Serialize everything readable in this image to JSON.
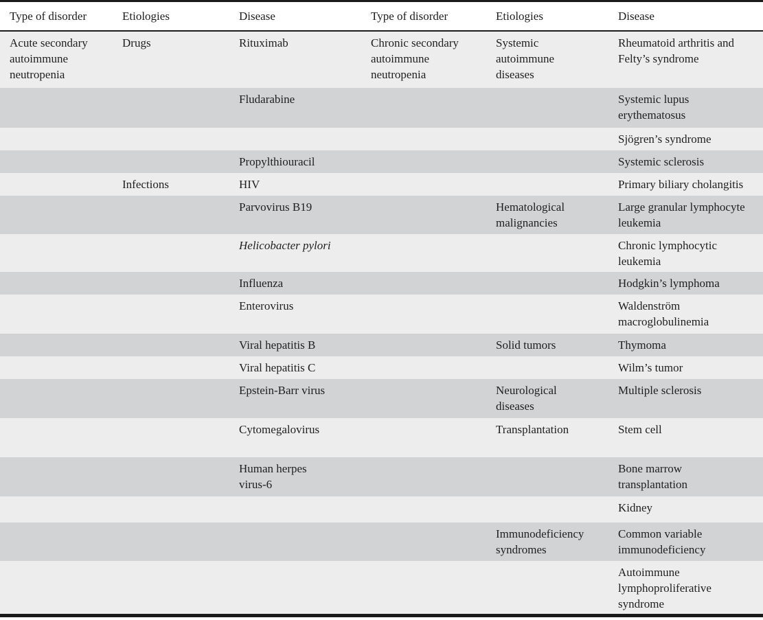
{
  "colors": {
    "row_light": "#ededed",
    "row_dark": "#d2d3d5",
    "rule": "#1b1b1b",
    "text": "#1f1f1f"
  },
  "table": {
    "columns": [
      "Type of disorder",
      "Etiologies",
      "Disease",
      "Type of disorder",
      "Etiologies",
      "Disease"
    ],
    "rows": [
      {
        "cells": [
          "Acute secondary\nautoimmune\nneutropenia",
          "Drugs",
          "Rituximab",
          "Chronic secondary\nautoimmune\nneutropenia",
          "Systemic\nautoimmune\ndiseases",
          "Rheumatoid arthritis and\nFelty’s syndrome"
        ]
      },
      {
        "cells": [
          "",
          "",
          "Fludarabine",
          "",
          "",
          "Systemic lupus\nerythematosus"
        ]
      },
      {
        "cells": [
          "",
          "",
          "",
          "",
          "",
          "Sjögren’s syndrome"
        ]
      },
      {
        "cells": [
          "",
          "",
          "Propylthiouracil",
          "",
          "",
          "Systemic sclerosis"
        ]
      },
      {
        "cells": [
          "",
          "Infections",
          "HIV",
          "",
          "",
          "Primary biliary cholangitis"
        ]
      },
      {
        "cells": [
          "",
          "",
          "Parvovirus B19",
          "",
          "Hematological\nmalignancies",
          "Large granular lymphocyte\nleukemia"
        ]
      },
      {
        "cells": [
          "",
          "",
          "Helicobacter pylori",
          "",
          "",
          "Chronic lymphocytic\nleukemia"
        ]
      },
      {
        "cells": [
          "",
          "",
          "Influenza",
          "",
          "",
          "Hodgkin’s lymphoma"
        ]
      },
      {
        "cells": [
          "",
          "",
          "Enterovirus",
          "",
          "",
          "Waldenström\nmacroglobulinemia"
        ]
      },
      {
        "cells": [
          "",
          "",
          "Viral hepatitis B",
          "",
          "Solid tumors",
          "Thymoma"
        ]
      },
      {
        "cells": [
          "",
          "",
          "Viral hepatitis C",
          "",
          "",
          "Wilm’s tumor"
        ]
      },
      {
        "cells": [
          "",
          "",
          "Epstein-Barr virus",
          "",
          "Neurological\ndiseases",
          "Multiple sclerosis"
        ]
      },
      {
        "cells": [
          "",
          "",
          "Cytomegalovirus",
          "",
          "Transplantation",
          "Stem cell"
        ]
      },
      {
        "cells": [
          "",
          "",
          "Human herpes\nvirus-6",
          "",
          "",
          "Bone marrow\ntransplantation"
        ]
      },
      {
        "cells": [
          "",
          "",
          "",
          "",
          "",
          "Kidney"
        ]
      },
      {
        "cells": [
          "",
          "",
          "",
          "",
          "Immunodeficiency\nsyndromes",
          "Common variable\nimmunodeficiency"
        ]
      },
      {
        "cells": [
          "",
          "",
          "",
          "",
          "",
          "Autoimmune\nlymphoproliferative\nsyndrome"
        ]
      }
    ]
  }
}
